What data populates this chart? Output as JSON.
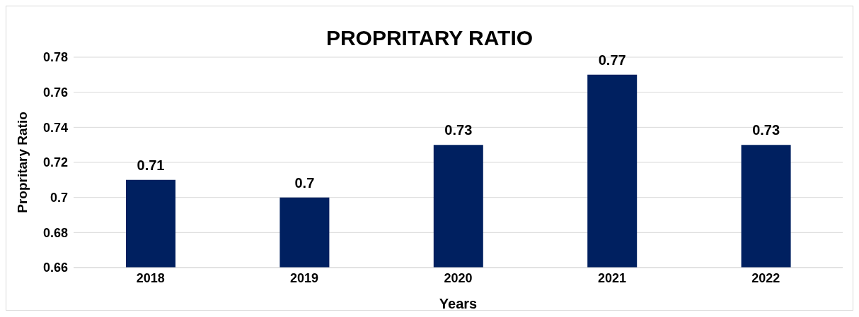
{
  "chart_data": {
    "type": "bar",
    "title": "PROPRITARY RATIO",
    "xlabel": "Years",
    "ylabel": "Propritary Ratio",
    "categories": [
      "2018",
      "2019",
      "2020",
      "2021",
      "2022"
    ],
    "values": [
      0.71,
      0.7,
      0.73,
      0.77,
      0.73
    ],
    "color": "#002060",
    "ylim": [
      0.66,
      0.78
    ],
    "yticks": [
      0.66,
      0.68,
      0.7,
      0.72,
      0.74,
      0.76,
      0.78
    ],
    "grid": "y",
    "data_labels": true
  }
}
